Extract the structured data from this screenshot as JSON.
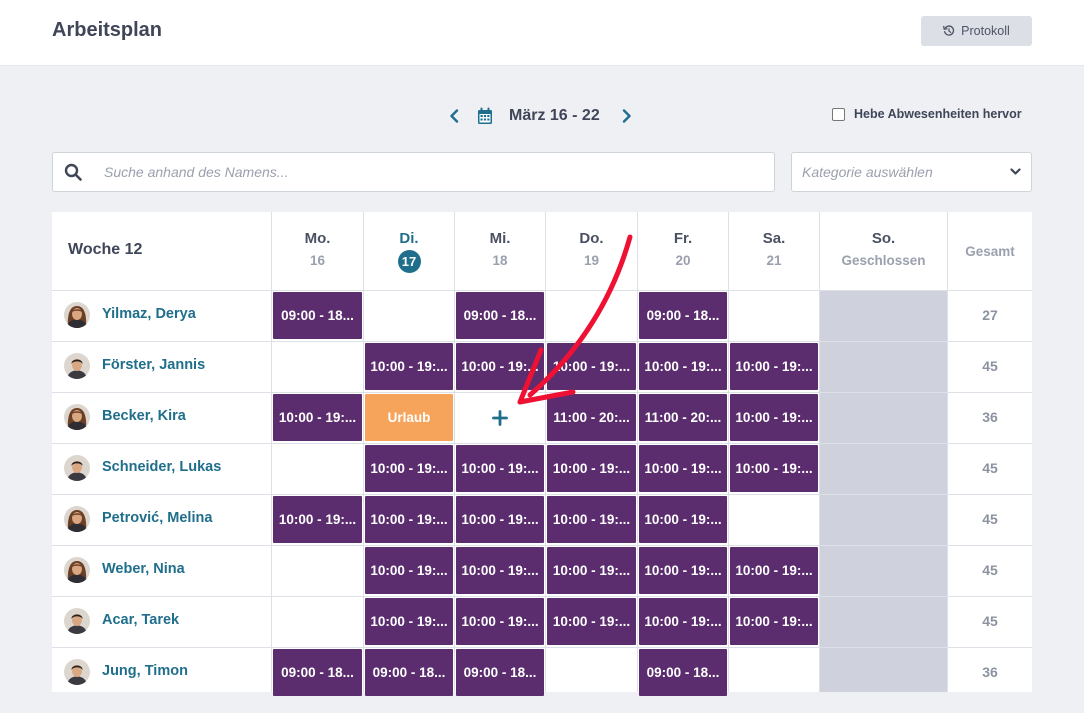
{
  "header": {
    "title": "Arbeitsplan",
    "protokoll_label": "Protokoll"
  },
  "week_nav": {
    "range": "März 16 - 22"
  },
  "highlight_absences": {
    "label": "Hebe Abwesenheiten hervor",
    "checked": false
  },
  "search": {
    "placeholder": "Suche anhand des Namens..."
  },
  "category": {
    "placeholder": "Kategorie auswählen"
  },
  "schedule": {
    "week_label": "Woche 12",
    "total_label": "Gesamt",
    "days": [
      {
        "name": "Mo.",
        "num": "16"
      },
      {
        "name": "Di.",
        "num": "17",
        "today": true
      },
      {
        "name": "Mi.",
        "num": "18"
      },
      {
        "name": "Do.",
        "num": "19"
      },
      {
        "name": "Fr.",
        "num": "20"
      },
      {
        "name": "Sa.",
        "num": "21"
      },
      {
        "name": "So.",
        "num": "Geschlossen"
      }
    ],
    "colors": {
      "shift": "#5b2d6e",
      "vacation": "#f6a45b",
      "closed": "#cfd2dc",
      "accent": "#1f6e8c"
    },
    "employees": [
      {
        "name": "Yilmaz, Derya",
        "total": "27",
        "avatar_icon": "female-avatar-icon",
        "shifts": [
          "09:00 - 18...",
          "",
          "09:00 - 18...",
          "",
          "09:00 - 18...",
          ""
        ]
      },
      {
        "name": "Förster, Jannis",
        "total": "45",
        "avatar_icon": "male-avatar-icon",
        "shifts": [
          "",
          "10:00 - 19:...",
          "10:00 - 19:...",
          "10:00 - 19:...",
          "10:00 - 19:...",
          "10:00 - 19:..."
        ]
      },
      {
        "name": "Becker, Kira",
        "total": "36",
        "avatar_icon": "female-avatar-icon",
        "shifts": [
          "10:00 - 19:...",
          "Urlaub",
          "+",
          "11:00 - 20:...",
          "11:00 - 20:...",
          "10:00 - 19:..."
        ]
      },
      {
        "name": "Schneider, Lukas",
        "total": "45",
        "avatar_icon": "male-avatar-icon",
        "shifts": [
          "",
          "10:00 - 19:...",
          "10:00 - 19:...",
          "10:00 - 19:...",
          "10:00 - 19:...",
          "10:00 - 19:..."
        ]
      },
      {
        "name": "Petrović, Melina",
        "total": "45",
        "avatar_icon": "female-avatar-icon",
        "shifts": [
          "10:00 - 19:...",
          "10:00 - 19:...",
          "10:00 - 19:...",
          "10:00 - 19:...",
          "10:00 - 19:...",
          ""
        ]
      },
      {
        "name": "Weber, Nina",
        "total": "45",
        "avatar_icon": "female-avatar-icon",
        "shifts": [
          "",
          "10:00 - 19:...",
          "10:00 - 19:...",
          "10:00 - 19:...",
          "10:00 - 19:...",
          "10:00 - 19:..."
        ]
      },
      {
        "name": "Acar, Tarek",
        "total": "45",
        "avatar_icon": "male-avatar-icon",
        "shifts": [
          "",
          "10:00 - 19:...",
          "10:00 - 19:...",
          "10:00 - 19:...",
          "10:00 - 19:...",
          "10:00 - 19:..."
        ]
      },
      {
        "name": "Jung, Timon",
        "total": "36",
        "avatar_icon": "male-avatar-icon",
        "shifts": [
          "09:00 - 18...",
          "09:00 - 18...",
          "09:00 - 18...",
          "",
          "09:00 - 18...",
          ""
        ]
      }
    ]
  },
  "annotation": {
    "arrow_color": "#ee1133",
    "arrow_icon": "red-arrow-icon"
  }
}
